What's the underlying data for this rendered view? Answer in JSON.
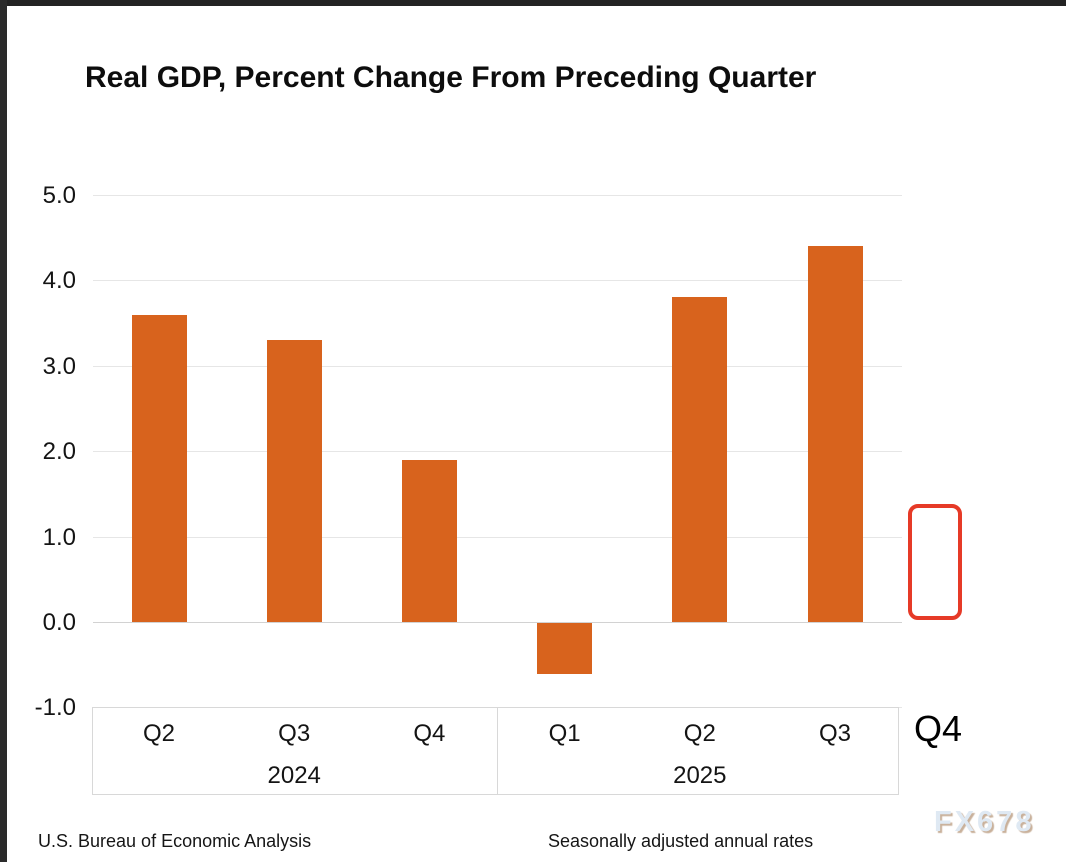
{
  "title": "Real GDP, Percent Change From Preceding Quarter",
  "footnotes": {
    "source": "U.S. Bureau of Economic Analysis",
    "adjustment": "Seasonally adjusted annual rates"
  },
  "watermark": "FX678",
  "pending": {
    "quarter_label": "Q4",
    "value_shown": null,
    "marker": "empty red outlined box"
  },
  "colors": {
    "bar": "#d8631d",
    "placeholder_border": "#e63a27",
    "gridline": "#e6e6e6",
    "axis_box_border": "#d8d8d8",
    "title_text": "#0d0d0d",
    "watermark_fill": "#dfe9f3",
    "watermark_shadow": "#c9b19b"
  },
  "chart_data": {
    "type": "bar",
    "title": "Real GDP, Percent Change From Preceding Quarter",
    "categories": [
      "Q2 2024",
      "Q3 2024",
      "Q4 2024",
      "Q1 2025",
      "Q2 2025",
      "Q3 2025"
    ],
    "values": [
      3.6,
      3.3,
      1.9,
      -0.6,
      3.8,
      4.4
    ],
    "year_groups": [
      {
        "year": "2024",
        "quarters": [
          "Q2",
          "Q3",
          "Q4"
        ]
      },
      {
        "year": "2025",
        "quarters": [
          "Q1",
          "Q2",
          "Q3"
        ]
      }
    ],
    "pending_category": {
      "quarter": "Q4",
      "value": null
    },
    "xlabel": "",
    "ylabel": "",
    "ylim": [
      -1.0,
      5.0
    ],
    "ytick_interval": 1.0,
    "yticks": [
      "5.0",
      "4.0",
      "3.0",
      "2.0",
      "1.0",
      "0.0",
      "-1.0"
    ],
    "grid": true,
    "legend": false,
    "bar_color": "#d8631d"
  }
}
